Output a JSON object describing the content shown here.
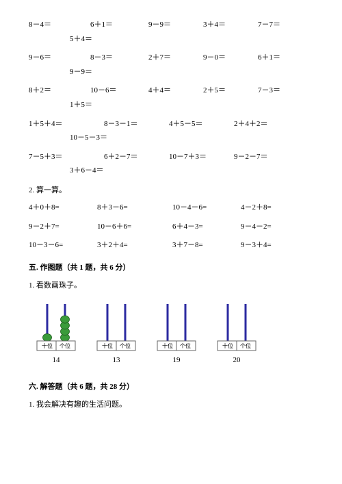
{
  "block1": {
    "r1": [
      "8－4＝",
      "6＋1＝",
      "9－9＝",
      "3＋4＝",
      "7－7＝"
    ],
    "r1b": "5＋4＝",
    "r2": [
      "9－6＝",
      "8－3＝",
      "2＋7＝",
      "9－0＝",
      "6＋1＝"
    ],
    "r2b": "9－9＝",
    "r3": [
      "8＋2＝",
      "10－6＝",
      "4＋4＝",
      "2＋5＝",
      "7－3＝"
    ],
    "r3b": "1＋5＝",
    "r4": [
      "1＋5＋4＝",
      "8－3－1＝",
      "4＋5－5＝",
      "2＋4＋2＝"
    ],
    "r4b": "10－5－3＝",
    "r5": [
      "7－5＋3＝",
      "6＋2－7＝",
      "10－7＋3＝",
      "9－2－7＝"
    ],
    "r5b": "3＋6－4＝"
  },
  "item2": "2. 算一算。",
  "block2": {
    "r1": [
      "4＋0＋8=",
      "8＋3－6=",
      "10－4－6=",
      "4－2＋8="
    ],
    "r2": [
      "9－2＋7=",
      "10－6＋6=",
      "6＋4－3=",
      "9－4－2="
    ],
    "r3": [
      "10－3－6=",
      "3＋2＋4=",
      "3＋7－8=",
      "9－3＋4="
    ]
  },
  "section5": "五. 作图题（共 1 题，共 6 分）",
  "item5_1": "1. 看数画珠子。",
  "abacus": {
    "tensLabel": "十位",
    "onesLabel": "个位",
    "items": [
      {
        "num": "14",
        "tensBeads": 1,
        "onesBeads": 4
      },
      {
        "num": "13",
        "tensBeads": 0,
        "onesBeads": 0
      },
      {
        "num": "19",
        "tensBeads": 0,
        "onesBeads": 0
      },
      {
        "num": "20",
        "tensBeads": 0,
        "onesBeads": 0
      }
    ],
    "rodColor": "#2b2aa0",
    "beadFill": "#3a9b3a",
    "beadStroke": "#1d5a1d",
    "boxBg": "#ffffff",
    "boxStroke": "#666666"
  },
  "section6": "六. 解答题（共 6 题，共 28 分）",
  "item6_1": "1. 我会解决有趣的生活问题。",
  "colors": {
    "text": "#000000",
    "bg": "#ffffff"
  },
  "layout": {
    "col5": [
      0,
      90,
      175,
      255,
      335
    ],
    "col5_indent": 60,
    "col4": [
      0,
      110,
      205,
      300
    ],
    "col4_indent": 60,
    "col4b": [
      0,
      100,
      210,
      310
    ]
  }
}
